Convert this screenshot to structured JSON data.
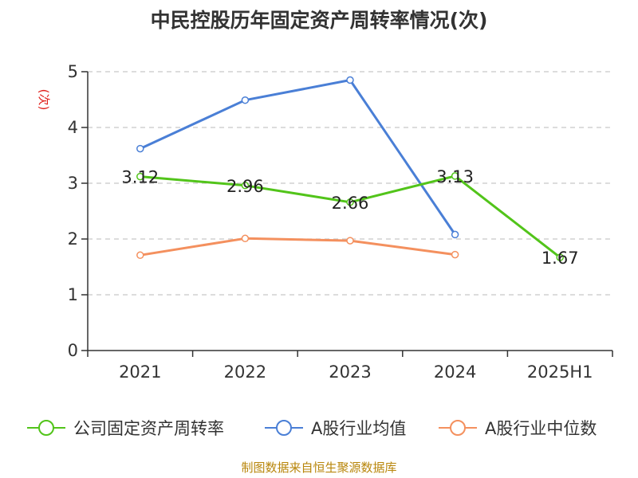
{
  "title": "中民控股历年固定资产周转率情况(次)",
  "source": "制图数据来自恒生聚源数据库",
  "chart_data": {
    "type": "line",
    "title": "中民控股历年固定资产周转率情况(次)",
    "ylabel": "(次)",
    "categories": [
      "2021",
      "2022",
      "2023",
      "2024",
      "2025H1"
    ],
    "ylim": [
      0,
      5
    ],
    "yticks": [
      0,
      1,
      2,
      3,
      4,
      5
    ],
    "grid": true,
    "legend_position": "bottom",
    "series": [
      {
        "name": "公司固定资产周转率",
        "color": "#52c41a",
        "values": [
          3.12,
          2.96,
          2.66,
          3.13,
          1.67
        ],
        "labels": [
          "3.12",
          "2.96",
          "2.66",
          "3.13",
          "1.67"
        ]
      },
      {
        "name": "A股行业均值",
        "color": "#4a7fd6",
        "values": [
          3.62,
          4.49,
          4.85,
          2.08,
          null
        ]
      },
      {
        "name": "A股行业中位数",
        "color": "#f4905e",
        "values": [
          1.71,
          2.01,
          1.97,
          1.72,
          null
        ]
      }
    ]
  }
}
